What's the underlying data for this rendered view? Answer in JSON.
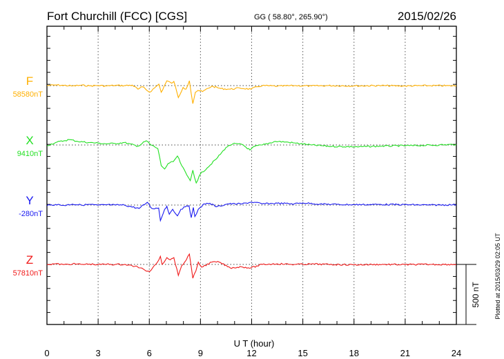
{
  "header": {
    "station": "Fort Churchill (FCC)  [CGS]",
    "coords": "GG ( 58.80°, 265.90°)",
    "date": "2015/02/26"
  },
  "footer": {
    "plotted": "Plotted at 2015/03/29 02:05 UT"
  },
  "chart_data": {
    "type": "line",
    "title": "Fort Churchill (FCC)  [CGS]",
    "xlabel": "U T (hour)",
    "xlim": [
      0,
      24
    ],
    "xticks": [
      "0",
      "3",
      "6",
      "9",
      "12",
      "15",
      "18",
      "21",
      "24"
    ],
    "scale_bar": {
      "label": "500 nT",
      "value_nT": 500
    },
    "grid": "dotted vertical at every 3 hours, dotted baseline per component",
    "series": [
      {
        "name": "F",
        "baseline_label": "58580nT",
        "color": "#ffb000",
        "points": [
          [
            0,
            0
          ],
          [
            0.5,
            5
          ],
          [
            1,
            2
          ],
          [
            1.5,
            -3
          ],
          [
            2,
            3
          ],
          [
            2.5,
            -2
          ],
          [
            3,
            1
          ],
          [
            3.5,
            -3
          ],
          [
            4,
            2
          ],
          [
            4.53,
            0
          ],
          [
            5.0,
            4
          ],
          [
            5.34,
            -30
          ],
          [
            5.6,
            -10
          ],
          [
            6.02,
            -55
          ],
          [
            6.3,
            -20
          ],
          [
            6.56,
            12
          ],
          [
            6.7,
            -55
          ],
          [
            7.03,
            40
          ],
          [
            7.3,
            20
          ],
          [
            7.44,
            35
          ],
          [
            7.7,
            -100
          ],
          [
            7.98,
            -15
          ],
          [
            8.15,
            -30
          ],
          [
            8.35,
            40
          ],
          [
            8.55,
            -150
          ],
          [
            8.7,
            -55
          ],
          [
            8.85,
            -40
          ],
          [
            9.12,
            -50
          ],
          [
            9.66,
            -5
          ],
          [
            10.2,
            -25
          ],
          [
            10.74,
            -30
          ],
          [
            11.3,
            -20
          ],
          [
            11.96,
            -30
          ],
          [
            12.3,
            -10
          ],
          [
            12.63,
            0
          ],
          [
            13.5,
            -5
          ],
          [
            14.5,
            0
          ],
          [
            15.5,
            -3
          ],
          [
            16.5,
            0
          ],
          [
            18,
            -2
          ],
          [
            19.5,
            0
          ],
          [
            21,
            -3
          ],
          [
            22.5,
            0
          ],
          [
            24,
            -2
          ]
        ]
      },
      {
        "name": "X",
        "baseline_label": "9410nT",
        "color": "#22e022",
        "points": [
          [
            0,
            -5
          ],
          [
            0.5,
            20
          ],
          [
            1,
            35
          ],
          [
            1.3,
            45
          ],
          [
            1.8,
            30
          ],
          [
            2.5,
            20
          ],
          [
            3,
            15
          ],
          [
            3.5,
            10
          ],
          [
            4,
            12
          ],
          [
            4.53,
            20
          ],
          [
            5.34,
            -10
          ],
          [
            5.82,
            35
          ],
          [
            6.1,
            0
          ],
          [
            6.5,
            -30
          ],
          [
            6.7,
            -172
          ],
          [
            6.9,
            -200
          ],
          [
            7.1,
            -155
          ],
          [
            7.4,
            -140
          ],
          [
            7.65,
            -92
          ],
          [
            7.9,
            -172
          ],
          [
            8.2,
            -250
          ],
          [
            8.4,
            -297
          ],
          [
            8.55,
            -210
          ],
          [
            8.75,
            -316
          ],
          [
            9.0,
            -240
          ],
          [
            9.4,
            -190
          ],
          [
            10.0,
            -105
          ],
          [
            10.5,
            -20
          ],
          [
            10.9,
            10
          ],
          [
            11.45,
            4
          ],
          [
            11.9,
            -42
          ],
          [
            12.2,
            -10
          ],
          [
            12.63,
            0
          ],
          [
            13.4,
            30
          ],
          [
            14.0,
            25
          ],
          [
            14.6,
            15
          ],
          [
            15.5,
            0
          ],
          [
            16.7,
            -12
          ],
          [
            18.3,
            -15
          ],
          [
            19.5,
            -10
          ],
          [
            21.5,
            -5
          ],
          [
            23,
            0
          ],
          [
            24,
            5
          ]
        ]
      },
      {
        "name": "Y",
        "baseline_label": "-280nT",
        "color": "#1818f0",
        "points": [
          [
            0,
            -5
          ],
          [
            0.5,
            5
          ],
          [
            1,
            -3
          ],
          [
            1.5,
            8
          ],
          [
            2,
            0
          ],
          [
            2.5,
            5
          ],
          [
            3,
            -2
          ],
          [
            3.5,
            3
          ],
          [
            4,
            0
          ],
          [
            4.53,
            0
          ],
          [
            5.4,
            -29
          ],
          [
            5.88,
            23
          ],
          [
            6.15,
            -29
          ],
          [
            6.55,
            -25
          ],
          [
            6.65,
            -130
          ],
          [
            6.9,
            -35
          ],
          [
            7.03,
            -10
          ],
          [
            7.17,
            -77
          ],
          [
            7.37,
            -35
          ],
          [
            7.65,
            -90
          ],
          [
            7.85,
            -35
          ],
          [
            8.12,
            -15
          ],
          [
            8.33,
            -5
          ],
          [
            8.46,
            -105
          ],
          [
            8.58,
            -20
          ],
          [
            8.67,
            -96
          ],
          [
            8.87,
            -35
          ],
          [
            9.07,
            -15
          ],
          [
            9.2,
            10
          ],
          [
            9.55,
            15
          ],
          [
            9.95,
            -15
          ],
          [
            10.6,
            10
          ],
          [
            11.45,
            10
          ],
          [
            12.0,
            25
          ],
          [
            12.63,
            10
          ],
          [
            13.5,
            15
          ],
          [
            14.5,
            10
          ],
          [
            15,
            18
          ],
          [
            16,
            8
          ],
          [
            17,
            5
          ],
          [
            18,
            3
          ],
          [
            19.5,
            5
          ],
          [
            21,
            3
          ],
          [
            22.5,
            0
          ],
          [
            24,
            3
          ]
        ]
      },
      {
        "name": "Z",
        "baseline_label": "57810nT",
        "color": "#f01818",
        "points": [
          [
            0,
            0
          ],
          [
            0.5,
            5
          ],
          [
            1,
            -2
          ],
          [
            1.5,
            4
          ],
          [
            2,
            0
          ],
          [
            2.5,
            3
          ],
          [
            3,
            -2
          ],
          [
            3.5,
            2
          ],
          [
            4,
            0
          ],
          [
            4.53,
            0
          ],
          [
            5.3,
            -19
          ],
          [
            5.74,
            -48
          ],
          [
            6.02,
            -60
          ],
          [
            6.29,
            -10
          ],
          [
            6.56,
            38
          ],
          [
            6.65,
            67
          ],
          [
            6.75,
            0
          ],
          [
            7.03,
            57
          ],
          [
            7.23,
            38
          ],
          [
            7.44,
            57
          ],
          [
            7.7,
            -92
          ],
          [
            7.9,
            -10
          ],
          [
            8.17,
            38
          ],
          [
            8.35,
            86
          ],
          [
            8.46,
            -20
          ],
          [
            8.55,
            -115
          ],
          [
            8.73,
            -55
          ],
          [
            8.87,
            19
          ],
          [
            9.07,
            -23
          ],
          [
            9.66,
            19
          ],
          [
            10.1,
            19
          ],
          [
            10.74,
            -29
          ],
          [
            11.4,
            -20
          ],
          [
            11.96,
            -29
          ],
          [
            12.63,
            0
          ],
          [
            13.5,
            5
          ],
          [
            14.5,
            0
          ],
          [
            15.5,
            3
          ],
          [
            16.5,
            0
          ],
          [
            18,
            -3
          ],
          [
            19.5,
            0
          ],
          [
            21,
            -2
          ],
          [
            22.5,
            0
          ],
          [
            24,
            0
          ]
        ]
      }
    ]
  }
}
